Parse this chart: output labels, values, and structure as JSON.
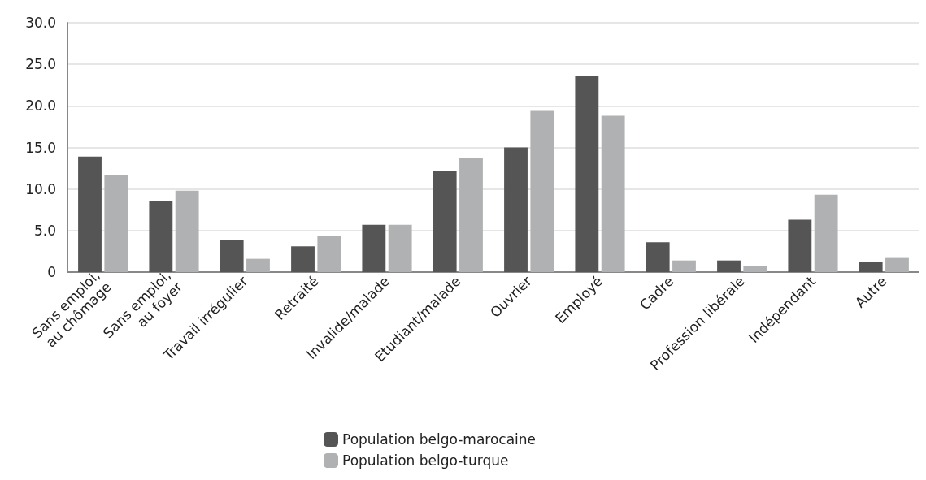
{
  "chart_data": {
    "type": "bar",
    "categories": [
      "Sans emploi,\nau chômage",
      "Sans emploi,\nau foyer",
      "Travail irrégulier",
      "Retraité",
      "Invalide/malade",
      "Etudiant/malade",
      "Ouvrier",
      "Employé",
      "Cadre",
      "Profession libérale",
      "Indépendant",
      "Autre"
    ],
    "series": [
      {
        "name": "Population belgo-marocaine",
        "color": "#555555",
        "values": [
          13.9,
          8.5,
          3.8,
          3.1,
          5.7,
          12.2,
          15.0,
          23.6,
          3.6,
          1.4,
          6.3,
          1.2
        ]
      },
      {
        "name": "Population belgo-turque",
        "color": "#b0b1b2",
        "values": [
          11.7,
          9.8,
          1.6,
          4.3,
          5.7,
          13.7,
          19.4,
          18.8,
          1.4,
          0.7,
          9.3,
          1.7
        ]
      }
    ],
    "ylim": [
      0,
      30
    ],
    "yticks": [
      {
        "value": 0,
        "label": "0"
      },
      {
        "value": 5,
        "label": "5.0"
      },
      {
        "value": 10,
        "label": "10.0"
      },
      {
        "value": 15,
        "label": "15.0"
      },
      {
        "value": 20,
        "label": "20.0"
      },
      {
        "value": 25,
        "label": "25.0"
      },
      {
        "value": 30,
        "label": "30.0"
      }
    ],
    "grid": "y",
    "legend": "bottom"
  }
}
